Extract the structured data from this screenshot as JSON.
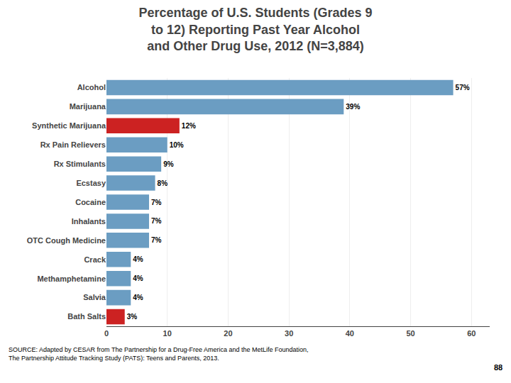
{
  "chart_data": {
    "type": "bar",
    "orientation": "horizontal",
    "title": "Percentage of U.S. Students (Grades 9\nto 12) Reporting Past Year Alcohol\nand Other Drug Use, 2012 (N=3,884)",
    "categories": [
      "Bath Salts",
      "Salvia",
      "Methamphetamine",
      "Crack",
      "OTC Cough Medicine",
      "Inhalants",
      "Cocaine",
      "Ecstasy",
      "Rx Stimulants",
      "Rx Pain Relievers",
      "Synthetic Marijuana",
      "Marijuana",
      "Alcohol"
    ],
    "values": [
      3,
      4,
      4,
      4,
      7,
      7,
      7,
      8,
      9,
      10,
      12,
      39,
      57
    ],
    "value_labels": [
      "3%",
      "4%",
      "4%",
      "4%",
      "7%",
      "7%",
      "7%",
      "8%",
      "9%",
      "10%",
      "12%",
      "39%",
      "57%"
    ],
    "data_labels": true,
    "colors": [
      "#cc2222",
      "#6b9dc2",
      "#6b9dc2",
      "#6b9dc2",
      "#6b9dc2",
      "#6b9dc2",
      "#6b9dc2",
      "#6b9dc2",
      "#6b9dc2",
      "#6b9dc2",
      "#cc2222",
      "#6b9dc2",
      "#6b9dc2"
    ],
    "xlim": [
      0,
      63
    ],
    "xticks": [
      0,
      10,
      20,
      30,
      40,
      50,
      60
    ],
    "grid": true,
    "annotations": [
      "SOURCE: Adapted by CESAR from The Partnership for a Drug-Free America and the MetLife Foundation,\nThe Partnership Attitude Tracking Study (PATS): Teens and Parents, 2013.",
      "88"
    ]
  }
}
